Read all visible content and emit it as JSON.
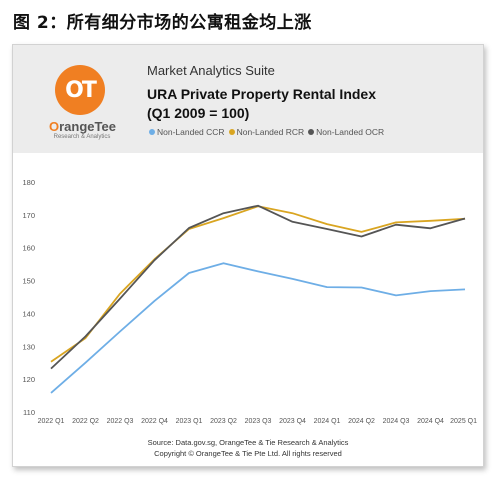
{
  "figure_title": "图 2：所有细分市场的公寓租金均上涨",
  "header": {
    "logo_mark": "OT",
    "logo_name_o": "O",
    "logo_name_rest": "rangeTee",
    "logo_sub": "Research & Analytics",
    "suite_name": "Market Analytics Suite",
    "chart_title_line1": "URA Private Property Rental Index",
    "chart_title_line2": "(Q1 2009 = 100)"
  },
  "footer": {
    "source": "Source: Data.gov.sg, OrangeTee & Tie Research & Analytics",
    "copyright": "Copyright © OrangeTee & Tie Pte Ltd. All rights reserved"
  },
  "chart_data": {
    "type": "line",
    "categories": [
      "2022 Q1",
      "2022 Q2",
      "2022 Q3",
      "2022 Q4",
      "2023 Q1",
      "2023 Q2",
      "2023 Q3",
      "2023 Q4",
      "2024 Q1",
      "2024 Q2",
      "2024 Q3",
      "2024 Q4",
      "2025 Q1"
    ],
    "ylim": [
      110,
      180
    ],
    "yticks": [
      110,
      120,
      130,
      140,
      150,
      160,
      170,
      180
    ],
    "grid": false,
    "legend_position": "top",
    "series": [
      {
        "name": "Non-Landed CCR",
        "color": "#6eaee6",
        "values": [
          115.8,
          125.0,
          134.5,
          143.8,
          152.3,
          155.3,
          152.8,
          150.5,
          148.0,
          147.9,
          145.5,
          146.8,
          147.3
        ]
      },
      {
        "name": "Non-Landed RCR",
        "color": "#d9a521",
        "values": [
          125.3,
          132.5,
          146.0,
          156.5,
          165.7,
          169.0,
          172.6,
          170.5,
          167.2,
          164.8,
          167.7,
          168.2,
          168.8
        ]
      },
      {
        "name": "Non-Landed OCR",
        "color": "#555555",
        "values": [
          123.2,
          133.0,
          144.5,
          156.2,
          166.0,
          170.5,
          172.8,
          167.9,
          165.7,
          163.4,
          167.0,
          165.9,
          168.9
        ]
      }
    ]
  }
}
